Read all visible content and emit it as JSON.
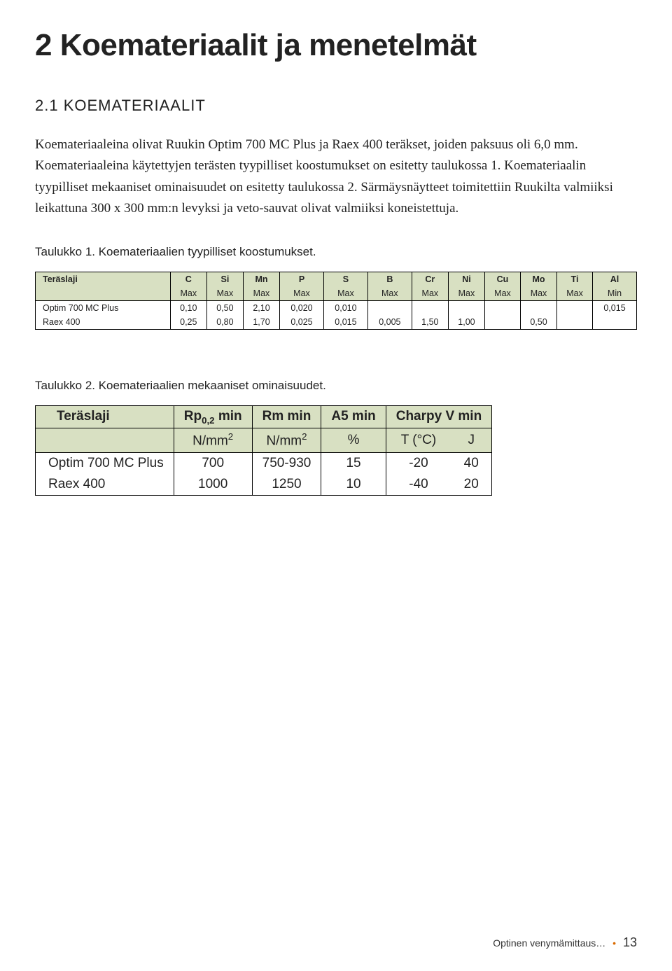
{
  "chapter_title": "2 Koemateriaalit ja menetelmät",
  "section_title": "2.1 KOEMATERIAALIT",
  "body_text": "Koemateriaaleina olivat Ruukin Optim 700 MC Plus ja Raex 400 teräkset, joiden paksuus oli 6,0 mm. Koemateriaaleina käytettyjen terästen tyypilliset koostumukset on esitetty taulukossa 1. Koemateriaalin tyypilliset mekaaniset ominaisuudet on esitetty taulukossa 2. Särmäysnäytteet toimitettiin Ruukilta valmiiksi leikattuna 300 x 300 mm:n levyksi ja veto-sauvat olivat valmiiksi koneistettuja.",
  "table1": {
    "caption": "Taulukko 1. Koemateriaalien tyypilliset koostumukset.",
    "header_bg": "#d8e0c2",
    "cols": [
      "Teräslaji",
      "C",
      "Si",
      "Mn",
      "P",
      "S",
      "B",
      "Cr",
      "Ni",
      "Cu",
      "Mo",
      "Ti",
      "Al"
    ],
    "units": [
      "",
      "Max",
      "Max",
      "Max",
      "Max",
      "Max",
      "Max",
      "Max",
      "Max",
      "Max",
      "Max",
      "Max",
      "Min"
    ],
    "rows": [
      [
        "Optim 700 MC Plus",
        "0,10",
        "0,50",
        "2,10",
        "0,020",
        "0,010",
        "",
        "",
        "",
        "",
        "",
        "",
        "0,015"
      ],
      [
        "Raex 400",
        "0,25",
        "0,80",
        "1,70",
        "0,025",
        "0,015",
        "0,005",
        "1,50",
        "1,00",
        "",
        "0,50",
        "",
        ""
      ]
    ]
  },
  "table2": {
    "caption": "Taulukko 2. Koemateriaalien mekaaniset ominaisuudet.",
    "header_bg": "#d8e0c2",
    "cols": {
      "c0": "Teräslaji",
      "c1_pre": "Rp",
      "c1_sub": "0,2",
      "c1_post": " min",
      "c2": "Rm min",
      "c3": "A5 min",
      "c4": "Charpy V min"
    },
    "units": {
      "u0": "",
      "u1_pre": "N/mm",
      "u1_sup": "2",
      "u2_pre": "N/mm",
      "u2_sup": "2",
      "u3": "%",
      "u4": "T (°C)",
      "u5": "J"
    },
    "rows": [
      [
        "Optim 700 MC Plus",
        "700",
        "750-930",
        "15",
        "-20",
        "40"
      ],
      [
        "Raex 400",
        "1000",
        "1250",
        "10",
        "-40",
        "20"
      ]
    ]
  },
  "footer": {
    "text": "Optinen venymämittaus…",
    "page": "13"
  }
}
